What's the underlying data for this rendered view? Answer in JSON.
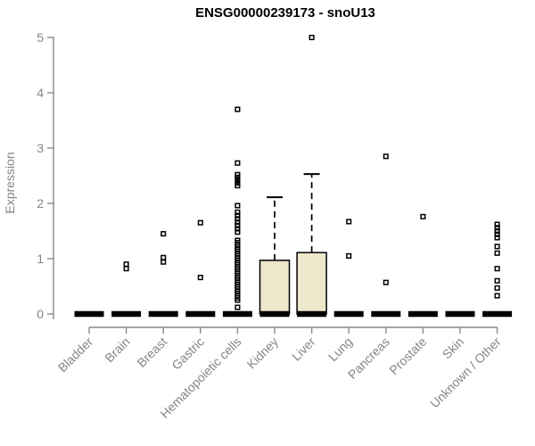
{
  "chart_data": {
    "type": "boxplot",
    "title": "ENSG00000239173 - snoU13",
    "ylabel": "Expression",
    "xlabel": "",
    "ylim": [
      0,
      5
    ],
    "yticks": [
      0,
      1,
      2,
      3,
      4,
      5
    ],
    "grid": false,
    "legend": null,
    "colors": {
      "box_fill": "#EDE8CC",
      "box_stroke": "#000000",
      "median": "#000000",
      "outlier": "#000000",
      "axis_line": "#8a8a8a",
      "axis_text": "#858585",
      "title_text": "#000000"
    },
    "categories": [
      "Bladder",
      "Brain",
      "Breast",
      "Gastric",
      "Hematopoietic cells",
      "Kidney",
      "Liver",
      "Lung",
      "Pancreas",
      "Prostate",
      "Skin",
      "Unknown / Other"
    ],
    "series": [
      {
        "name": "Bladder",
        "whisker_low": 0,
        "q1": 0,
        "median": 0,
        "q3": 0,
        "whisker_high": 0,
        "outliers": []
      },
      {
        "name": "Brain",
        "whisker_low": 0,
        "q1": 0,
        "median": 0,
        "q3": 0,
        "whisker_high": 0,
        "outliers": [
          0.9,
          0.82
        ]
      },
      {
        "name": "Breast",
        "whisker_low": 0,
        "q1": 0,
        "median": 0,
        "q3": 0,
        "whisker_high": 0,
        "outliers": [
          1.45,
          1.02,
          0.94
        ]
      },
      {
        "name": "Gastric",
        "whisker_low": 0,
        "q1": 0,
        "median": 0,
        "q3": 0,
        "whisker_high": 0,
        "outliers": [
          1.65,
          0.66
        ]
      },
      {
        "name": "Hematopoietic cells",
        "whisker_low": 0,
        "q1": 0,
        "median": 0,
        "q3": 0,
        "whisker_high": 0,
        "outliers": [
          3.7,
          2.73,
          2.52,
          2.47,
          2.42,
          2.37,
          2.32,
          1.96,
          1.84,
          1.78,
          1.72,
          1.66,
          1.6,
          1.54,
          1.48,
          1.33,
          1.29,
          1.25,
          1.21,
          1.17,
          1.13,
          1.09,
          1.05,
          1.01,
          0.97,
          0.93,
          0.89,
          0.85,
          0.81,
          0.77,
          0.73,
          0.69,
          0.65,
          0.61,
          0.57,
          0.53,
          0.49,
          0.45,
          0.41,
          0.37,
          0.33,
          0.29,
          0.25,
          0.12
        ]
      },
      {
        "name": "Kidney",
        "whisker_low": 0,
        "q1": 0,
        "median": 0,
        "q3": 0.97,
        "whisker_high": 2.11,
        "outliers": []
      },
      {
        "name": "Liver",
        "whisker_low": 0,
        "q1": 0,
        "median": 0,
        "q3": 1.11,
        "whisker_high": 2.53,
        "outliers": [
          5.0
        ]
      },
      {
        "name": "Lung",
        "whisker_low": 0,
        "q1": 0,
        "median": 0,
        "q3": 0,
        "whisker_high": 0,
        "outliers": [
          1.67,
          1.05
        ]
      },
      {
        "name": "Pancreas",
        "whisker_low": 0,
        "q1": 0,
        "median": 0,
        "q3": 0,
        "whisker_high": 0,
        "outliers": [
          2.85,
          0.57
        ]
      },
      {
        "name": "Prostate",
        "whisker_low": 0,
        "q1": 0,
        "median": 0,
        "q3": 0,
        "whisker_high": 0,
        "outliers": [
          1.76
        ]
      },
      {
        "name": "Skin",
        "whisker_low": 0,
        "q1": 0,
        "median": 0,
        "q3": 0,
        "whisker_high": 0,
        "outliers": []
      },
      {
        "name": "Unknown / Other",
        "whisker_low": 0,
        "q1": 0,
        "median": 0,
        "q3": 0,
        "whisker_high": 0,
        "outliers": [
          1.62,
          1.56,
          1.5,
          1.44,
          1.38,
          1.22,
          1.1,
          0.82,
          0.6,
          0.47,
          0.33
        ]
      }
    ]
  }
}
